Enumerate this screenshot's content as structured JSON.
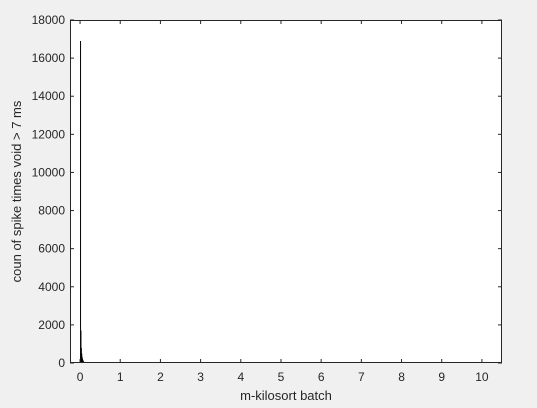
{
  "chart_data": {
    "type": "bar",
    "title": "",
    "xlabel": "m-kilosort batch",
    "ylabel": "coun of spike times void > 7 ms",
    "xlim": [
      -0.25,
      10.5
    ],
    "ylim": [
      0,
      18000
    ],
    "xticks": [
      0,
      1,
      2,
      3,
      4,
      5,
      6,
      7,
      8,
      9,
      10
    ],
    "yticks": [
      0,
      2000,
      4000,
      6000,
      8000,
      10000,
      12000,
      14000,
      16000,
      18000
    ],
    "grid": false,
    "colors": {
      "bars": "#000000",
      "axes": "#262626",
      "plot_bg": "#ffffff",
      "figure_bg": "#f0f0f0"
    },
    "bar_width": 0.01,
    "x": [
      0.005,
      0.015,
      0.025,
      0.035,
      0.045,
      0.055,
      0.065,
      0.075,
      0.085,
      0.095,
      0.105,
      0.115
    ],
    "values": [
      16900,
      1700,
      800,
      500,
      320,
      220,
      150,
      100,
      70,
      50,
      30,
      20
    ]
  }
}
